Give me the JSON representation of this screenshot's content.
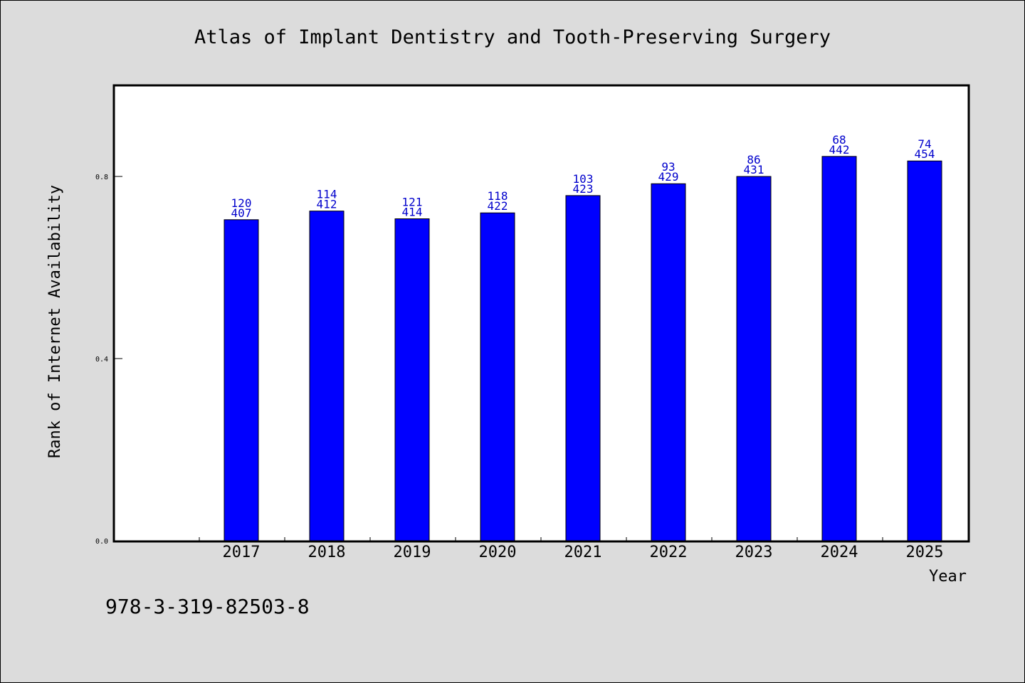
{
  "isbn": "978-3-319-82503-8",
  "chart_data": {
    "type": "bar",
    "title": "Atlas of Implant Dentistry and Tooth-Preserving Surgery",
    "xlabel": "Year",
    "ylabel": "Rank of Internet Availability",
    "categories": [
      "2017",
      "2018",
      "2019",
      "2020",
      "2021",
      "2022",
      "2023",
      "2024",
      "2025"
    ],
    "values": [
      0.705,
      0.724,
      0.707,
      0.72,
      0.758,
      0.784,
      0.8,
      0.844,
      0.834
    ],
    "label_top": [
      "120",
      "114",
      "121",
      "118",
      "103",
      "93",
      "86",
      "68",
      "74"
    ],
    "label_bottom": [
      "407",
      "412",
      "414",
      "422",
      "423",
      "429",
      "431",
      "442",
      "454"
    ],
    "ylim": [
      0,
      1.0
    ],
    "yticks": [
      "0.0",
      "0.4",
      "0.8"
    ],
    "ytick_values": [
      0,
      0.4,
      0.8
    ],
    "bar_color": "#0000ff",
    "label_color": "#0000cc",
    "background": "#dcdcdc",
    "plot_background": "#ffffff",
    "grid": false
  }
}
